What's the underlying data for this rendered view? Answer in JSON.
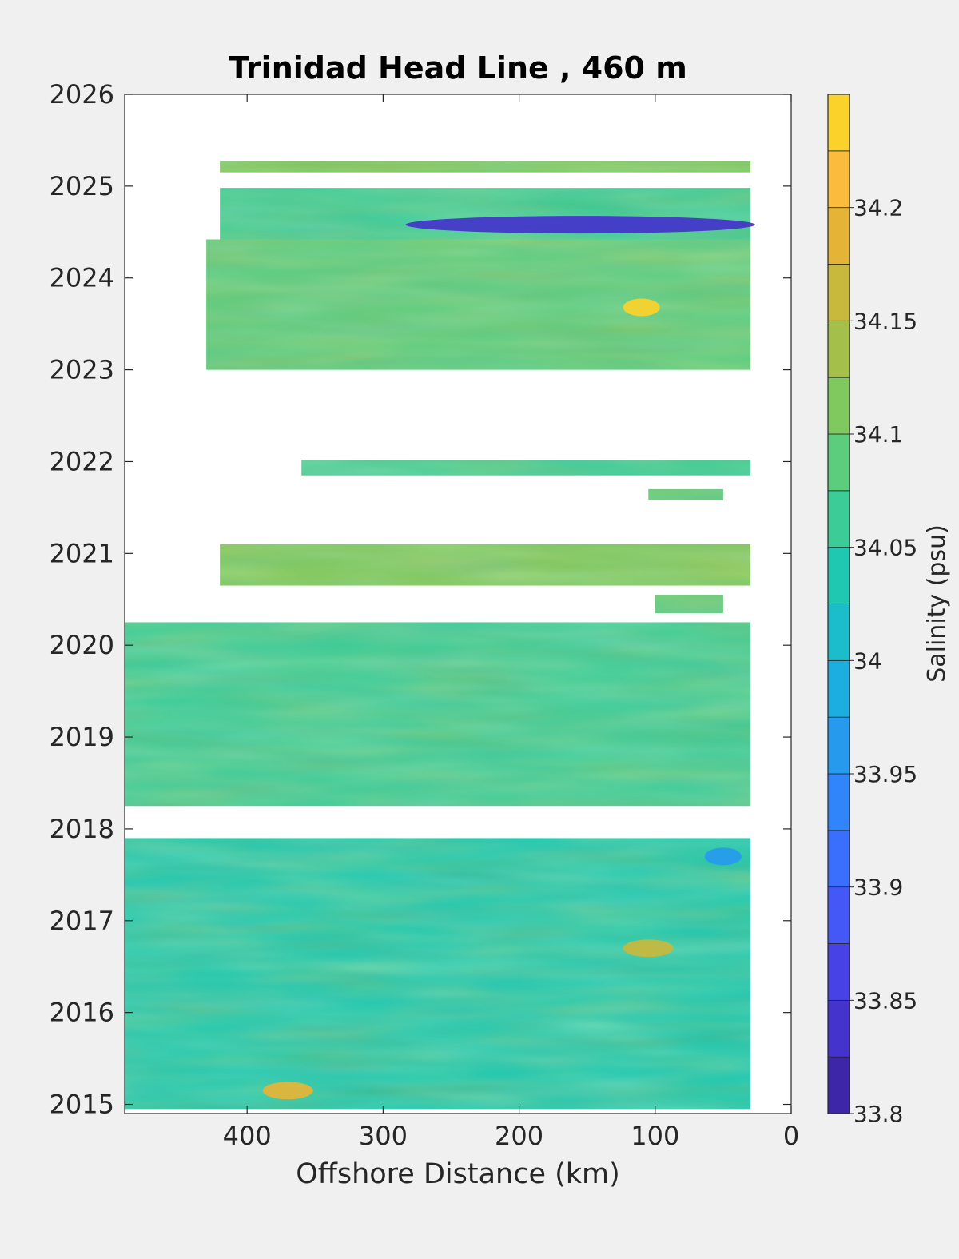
{
  "chart_data": {
    "type": "heatmap",
    "title": "Trinidad Head Line , 460 m",
    "xlabel": "Offshore Distance (km)",
    "ylabel": "",
    "x_direction": "reversed",
    "xlim": [
      0,
      490
    ],
    "ylim": [
      2014.9,
      2026
    ],
    "x_ticks": [
      400,
      300,
      200,
      100,
      0
    ],
    "y_ticks": [
      2015,
      2016,
      2017,
      2018,
      2019,
      2020,
      2021,
      2022,
      2023,
      2024,
      2025,
      2026
    ],
    "colorbar": {
      "label": "Salinity (psu)",
      "clim": [
        33.8,
        34.25
      ],
      "levels": [
        33.8,
        33.825,
        33.85,
        33.875,
        33.9,
        33.925,
        33.95,
        33.975,
        34.0,
        34.025,
        34.05,
        34.075,
        34.1,
        34.125,
        34.15,
        34.175,
        34.2,
        34.225,
        34.25
      ],
      "tick_labels": [
        "33.8",
        "33.85",
        "33.9",
        "33.95",
        "34",
        "34.05",
        "34.1",
        "34.15",
        "34.2"
      ],
      "colors": [
        "#3e26a8",
        "#4433cc",
        "#4642e6",
        "#4458f7",
        "#3a6efd",
        "#2f85f9",
        "#269aed",
        "#1caee0",
        "#1cbdcb",
        "#1fc8b0",
        "#3ccc98",
        "#5ccc7d",
        "#7fc95e",
        "#a5c04a",
        "#c8b83c",
        "#e5b436",
        "#fbbc3d",
        "#fbd22a",
        "#f5e725"
      ]
    },
    "swaths": [
      {
        "y": [
          2025.15,
          2025.27
        ],
        "x": [
          30,
          420
        ],
        "mean": 34.11
      },
      {
        "y": [
          2024.42,
          2024.98
        ],
        "x": [
          30,
          420
        ],
        "mean": 34.07
      },
      {
        "y": [
          2023.0,
          2024.42
        ],
        "x": [
          30,
          430
        ],
        "mean": 34.08
      },
      {
        "y": [
          2021.85,
          2022.02
        ],
        "x": [
          30,
          360
        ],
        "mean": 34.07
      },
      {
        "y": [
          2021.58,
          2021.7
        ],
        "x": [
          50,
          105
        ],
        "mean": 34.08
      },
      {
        "y": [
          2020.65,
          2021.1
        ],
        "x": [
          30,
          420
        ],
        "mean": 34.1
      },
      {
        "y": [
          2020.35,
          2020.55
        ],
        "x": [
          50,
          100
        ],
        "mean": 34.09
      },
      {
        "y": [
          2018.25,
          2020.25
        ],
        "x": [
          30,
          490
        ],
        "mean": 34.07
      },
      {
        "y": [
          2014.95,
          2017.9
        ],
        "x": [
          30,
          490
        ],
        "mean": 34.04
      }
    ],
    "features": [
      {
        "label": "fresh anomaly",
        "y": 2024.58,
        "x": [
          30,
          280
        ],
        "value": 33.83
      },
      {
        "label": "salty anomaly",
        "y": 2023.68,
        "x": [
          100,
          120
        ],
        "value": 34.23
      },
      {
        "label": "salty anomaly",
        "y": 2015.15,
        "x": [
          355,
          385
        ],
        "value": 34.18
      },
      {
        "label": "salty anomaly",
        "y": 2016.7,
        "x": [
          90,
          120
        ],
        "value": 34.17
      },
      {
        "label": "fresh anomaly",
        "y": 2017.7,
        "x": [
          40,
          60
        ],
        "value": 33.97
      }
    ]
  }
}
